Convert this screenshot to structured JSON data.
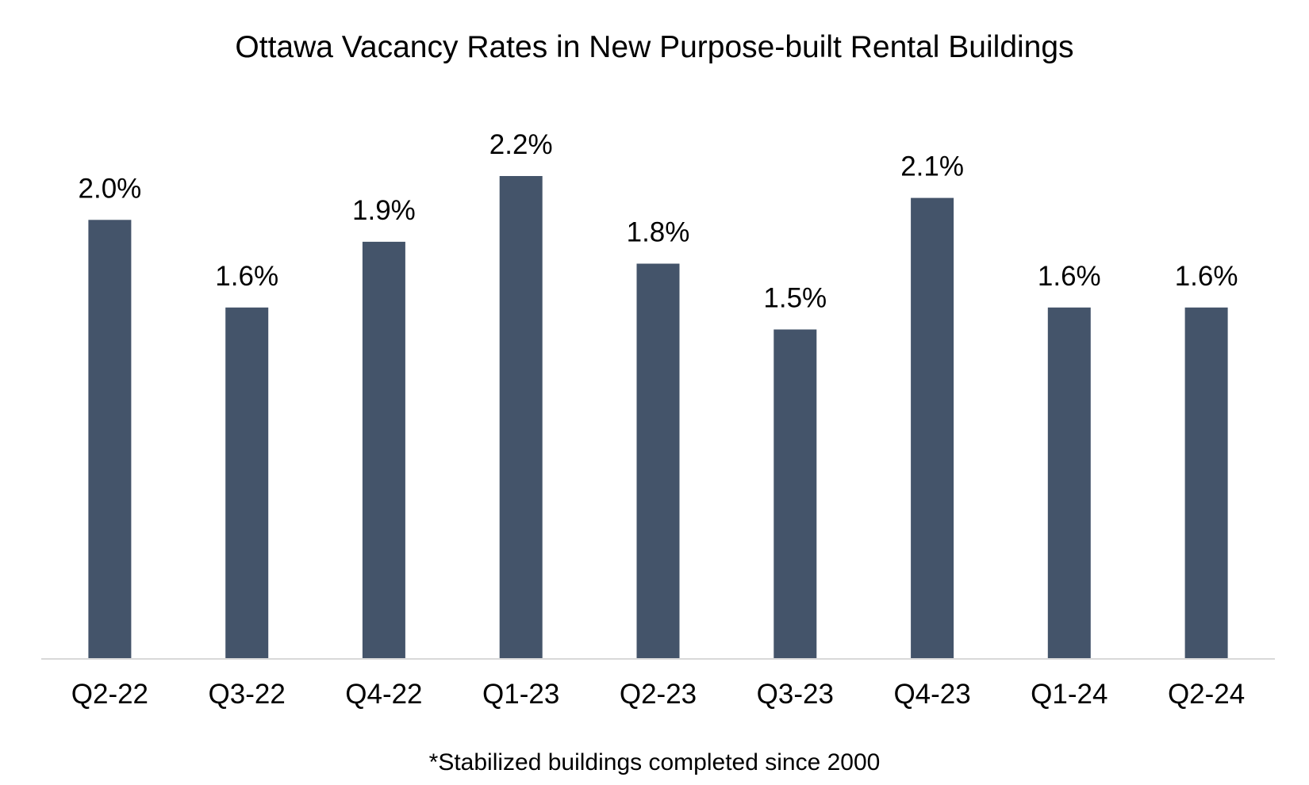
{
  "chart_data": {
    "type": "bar",
    "title": "Ottawa Vacancy Rates in New Purpose-built Rental Buildings",
    "categories": [
      "Q2-22",
      "Q3-22",
      "Q4-22",
      "Q1-23",
      "Q2-23",
      "Q3-23",
      "Q4-23",
      "Q1-24",
      "Q2-24"
    ],
    "values": [
      2.0,
      1.6,
      1.9,
      2.2,
      1.8,
      1.5,
      2.1,
      1.6,
      1.6
    ],
    "data_labels": [
      "2.0%",
      "1.6%",
      "1.9%",
      "2.2%",
      "1.8%",
      "1.5%",
      "2.1%",
      "1.6%",
      "1.6%"
    ],
    "ylim": [
      0,
      2.2
    ],
    "xlabel": "",
    "ylabel": "",
    "grid": false,
    "legend": "none",
    "footnote": "*Stabilized buildings completed since 2000",
    "bar_color": "#44546a",
    "axis_color": "#d9d9d9"
  }
}
